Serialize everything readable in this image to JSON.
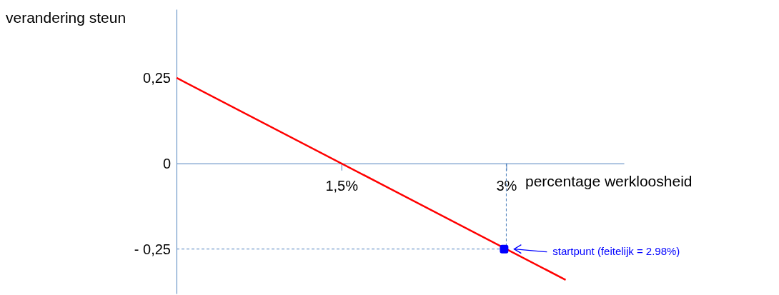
{
  "chart_data": {
    "type": "line",
    "xlabel": "percentage werkloosheid",
    "ylabel": "verandering steun",
    "xlim": [
      0,
      4.07
    ],
    "ylim": [
      -0.38,
      0.45
    ],
    "xticks": [
      {
        "value": 1.5,
        "label": "1,5%"
      },
      {
        "value": 3,
        "label": "3%"
      }
    ],
    "yticks": [
      {
        "value": 0.25,
        "label": "0,25"
      },
      0,
      {
        "value": -0.25,
        "label": "- 0,25"
      }
    ],
    "series": [
      {
        "color": "#ff0000",
        "x": [
          0,
          3.54
        ],
        "values": [
          0.25,
          -0.34
        ]
      },
      {
        "type": "scatter",
        "color": "#0000ff",
        "x": [
          2.98
        ],
        "values": [
          -0.25
        ],
        "marker": "square"
      }
    ],
    "ref_lines": [
      {
        "axis": "y",
        "value": -0.25,
        "color": "#4f81bd",
        "line_style": "dashed"
      },
      {
        "axis": "x",
        "value": 3,
        "color": "#4f81bd",
        "line_style": "dashed"
      }
    ],
    "annotations": [
      "startpunt (feitelijk = 2.98%)"
    ],
    "grid": false
  }
}
